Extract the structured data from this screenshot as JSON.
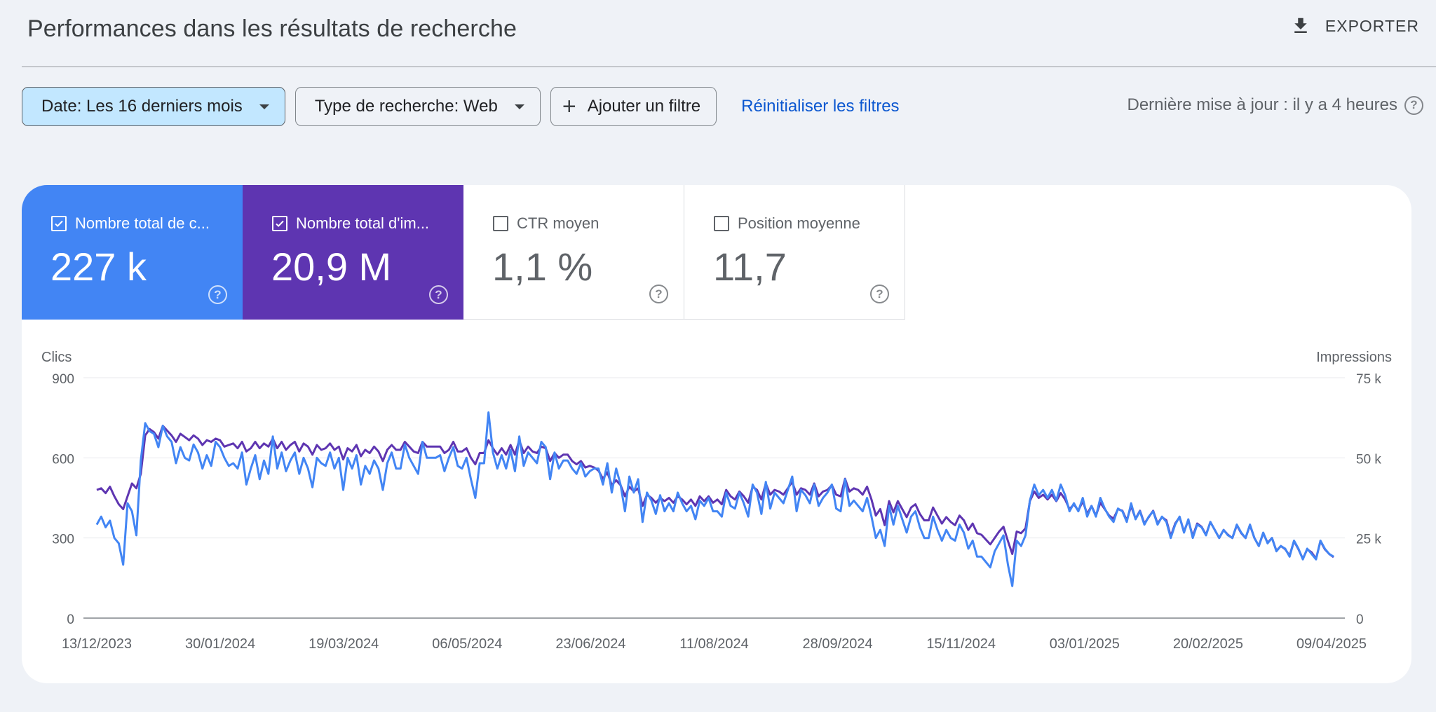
{
  "header": {
    "title": "Performances dans les résultats de recherche",
    "export_label": "EXPORTER",
    "export_icon": "download-icon"
  },
  "filters": {
    "date": "Date: Les 16 derniers mois",
    "type": "Type de recherche: Web",
    "add": "Ajouter un filtre",
    "reset": "Réinitialiser les filtres",
    "updated": "Dernière mise à jour : il y a 4 heures"
  },
  "metrics": [
    {
      "label": "Nombre total de c...",
      "value": "227 k",
      "checked": true,
      "color": "#4285f4"
    },
    {
      "label": "Nombre total d'im...",
      "value": "20,9 M",
      "checked": true,
      "color": "#5e35b1"
    },
    {
      "label": "CTR moyen",
      "value": "1,1 %",
      "checked": false
    },
    {
      "label": "Position moyenne",
      "value": "11,7",
      "checked": false
    }
  ],
  "chart_data": {
    "type": "line",
    "left_axis": {
      "label": "Clics",
      "ticks": [
        "900",
        "600",
        "300",
        "0"
      ],
      "range": [
        0,
        900
      ]
    },
    "right_axis": {
      "label": "Impressions",
      "ticks": [
        "75 k",
        "50 k",
        "25 k",
        "0"
      ],
      "range": [
        0,
        75000
      ]
    },
    "x_ticks": [
      "13/12/2023",
      "30/01/2024",
      "19/03/2024",
      "06/05/2024",
      "23/06/2024",
      "11/08/2024",
      "28/09/2024",
      "15/11/2024",
      "03/01/2025",
      "20/02/2025",
      "09/04/2025"
    ],
    "grid": true,
    "series": [
      {
        "name": "Clics",
        "axis": "left",
        "color": "#4285f4",
        "values": [
          350,
          380,
          340,
          365,
          300,
          280,
          200,
          430,
          400,
          310,
          590,
          730,
          700,
          690,
          640,
          720,
          680,
          660,
          580,
          640,
          600,
          590,
          650,
          620,
          560,
          610,
          570,
          660,
          640,
          600,
          570,
          580,
          560,
          620,
          500,
          560,
          610,
          520,
          590,
          540,
          680,
          560,
          620,
          550,
          590,
          620,
          540,
          600,
          560,
          490,
          600,
          580,
          570,
          620,
          560,
          600,
          480,
          600,
          560,
          610,
          500,
          570,
          540,
          590,
          560,
          480,
          580,
          620,
          560,
          560,
          650,
          600,
          570,
          540,
          660,
          600,
          600,
          600,
          610,
          550,
          600,
          640,
          570,
          560,
          600,
          520,
          450,
          580,
          580,
          770,
          620,
          560,
          610,
          560,
          630,
          550,
          680,
          570,
          620,
          600,
          580,
          660,
          640,
          520,
          620,
          560,
          590,
          590,
          560,
          540,
          580,
          530,
          550,
          560,
          560,
          500,
          580,
          470,
          560,
          500,
          400,
          530,
          470,
          520,
          360,
          470,
          440,
          390,
          460,
          400,
          430,
          400,
          470,
          430,
          400,
          420,
          370,
          440,
          420,
          450,
          400,
          400,
          380,
          470,
          420,
          410,
          470,
          430,
          380,
          500,
          470,
          390,
          510,
          410,
          470,
          450,
          430,
          480,
          530,
          400,
          480,
          460,
          430,
          500,
          420,
          450,
          470,
          500,
          410,
          400,
          520,
          420,
          440,
          420,
          400,
          450,
          380,
          300,
          330,
          270,
          420,
          350,
          420,
          370,
          320,
          380,
          400,
          340,
          300,
          300,
          380,
          330,
          290,
          330,
          300,
          290,
          350,
          320,
          260,
          290,
          230,
          230,
          210,
          190,
          250,
          280,
          310,
          200,
          120,
          290,
          270,
          310,
          440,
          500,
          460,
          480,
          450,
          480,
          440,
          500,
          460,
          400,
          430,
          400,
          450,
          380,
          420,
          380,
          450,
          410,
          380,
          360,
          410,
          400,
          360,
          430,
          370,
          400,
          350,
          380,
          400,
          350,
          380,
          360,
          300,
          350,
          380,
          320,
          370,
          300,
          350,
          340,
          310,
          360,
          330,
          300,
          330,
          310,
          300,
          350,
          320,
          300,
          350,
          300,
          270,
          320,
          280,
          300,
          250,
          270,
          260,
          230,
          290,
          260,
          220,
          260,
          240,
          220,
          290,
          260,
          240,
          230
        ]
      },
      {
        "name": "Impressions",
        "axis": "right",
        "color": "#5e35b1",
        "values": [
          40000,
          40500,
          39000,
          41000,
          38000,
          35500,
          34000,
          38000,
          42000,
          40500,
          45000,
          57000,
          59000,
          58000,
          56000,
          60000,
          58500,
          57000,
          55000,
          57500,
          56500,
          55500,
          57000,
          56000,
          54000,
          55500,
          55000,
          56000,
          55500,
          53500,
          54000,
          54500,
          53000,
          55000,
          52000,
          53000,
          55000,
          53000,
          54500,
          53500,
          56000,
          53000,
          55000,
          52500,
          54000,
          55000,
          52000,
          54500,
          53500,
          51000,
          54000,
          52500,
          53000,
          54500,
          52500,
          53500,
          49500,
          53000,
          52000,
          54000,
          50500,
          52500,
          51500,
          53500,
          52000,
          49000,
          52500,
          54000,
          52500,
          52500,
          55000,
          53500,
          52000,
          51500,
          55000,
          53500,
          53500,
          53500,
          53500,
          51500,
          52500,
          55000,
          52000,
          52000,
          53000,
          50000,
          48000,
          51500,
          51500,
          55500,
          53000,
          51000,
          53000,
          51000,
          54000,
          51000,
          55500,
          51500,
          53500,
          52000,
          51500,
          53500,
          53000,
          49000,
          51500,
          50000,
          51000,
          51000,
          49000,
          48000,
          49000,
          47000,
          47500,
          47000,
          46000,
          43500,
          45500,
          41500,
          43000,
          41500,
          38000,
          41000,
          39500,
          40500,
          35000,
          38500,
          37500,
          36000,
          37500,
          36500,
          37500,
          36000,
          38000,
          37000,
          35500,
          37000,
          35000,
          38000,
          36500,
          38000,
          36000,
          37000,
          35500,
          40000,
          38000,
          37000,
          39500,
          38000,
          36000,
          41000,
          40000,
          37000,
          42000,
          38500,
          40000,
          39500,
          38500,
          40500,
          42500,
          38500,
          40500,
          40000,
          38500,
          42000,
          38000,
          39500,
          40000,
          41500,
          38500,
          38000,
          43500,
          39500,
          40500,
          40000,
          38500,
          41000,
          37000,
          32000,
          34000,
          29000,
          36500,
          33000,
          36500,
          34000,
          31500,
          34500,
          35500,
          32500,
          30500,
          30500,
          34500,
          32000,
          29500,
          31500,
          30000,
          29000,
          32000,
          30500,
          27500,
          29500,
          26500,
          26000,
          24500,
          23000,
          25000,
          27000,
          28500,
          24000,
          20000,
          27000,
          26500,
          28000,
          36500,
          39500,
          37500,
          38500,
          37000,
          38500,
          36500,
          39000,
          37000,
          34000,
          35500,
          33500,
          36500,
          32500,
          35000,
          32000,
          36000,
          34000,
          32000,
          31000,
          34000,
          33500,
          30500,
          35000,
          31000,
          33500,
          29500,
          31500,
          33500,
          29500,
          31500,
          30500,
          25500,
          29500,
          31500,
          27000,
          30500,
          25500,
          29500,
          28500,
          26000,
          30000,
          27500,
          25000,
          27500,
          26000,
          25000,
          29000,
          26500,
          25000,
          29000,
          25000,
          22500,
          26500,
          23500,
          25000,
          21000,
          22500,
          21500,
          19500,
          24000,
          21500,
          18500,
          21500,
          20500,
          18500,
          24000,
          21500,
          20000,
          19000
        ]
      }
    ]
  }
}
